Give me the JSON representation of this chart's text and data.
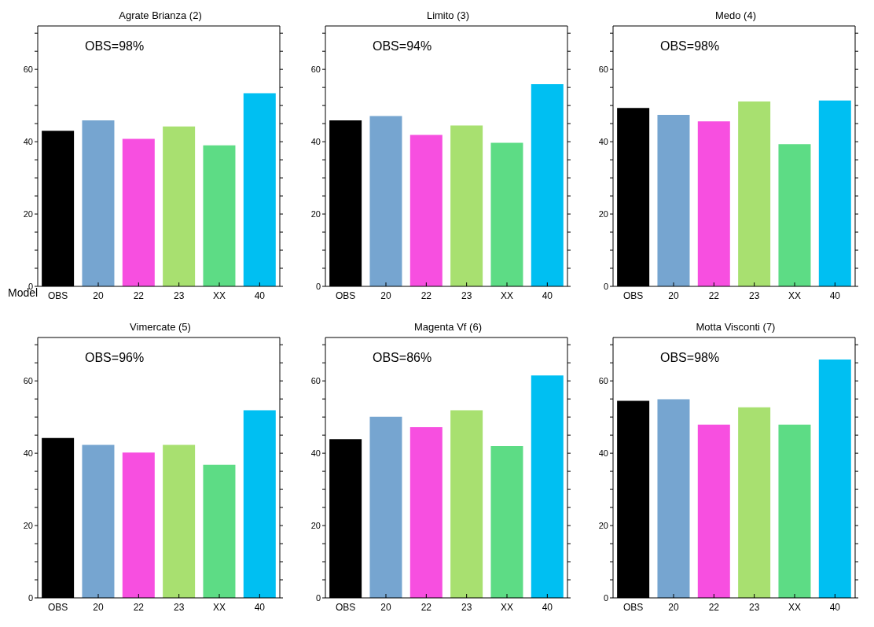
{
  "chart_data": [
    {
      "type": "bar",
      "title": "Agrate Brianza (2)",
      "xlabel": "Model",
      "annotations": [
        "OBS=98%"
      ],
      "categories": [
        "OBS",
        "20",
        "22",
        "23",
        "XX",
        "40"
      ],
      "values": [
        43.0,
        45.9,
        40.8,
        44.2,
        39.0,
        53.4
      ],
      "colors": [
        "#000000",
        "#76a5d0",
        "#f74fe0",
        "#a8e070",
        "#5ddc85",
        "#00bff2"
      ],
      "ylim": [
        0,
        72
      ],
      "yticks": [
        0,
        {
          "value": 5,
          "label": null
        },
        {
          "value": 10,
          "label": null
        },
        {
          "value": 15,
          "label": null
        },
        20,
        {
          "value": 25,
          "label": null
        },
        {
          "value": 30,
          "label": null
        },
        {
          "value": 35,
          "label": null
        },
        40,
        {
          "value": 45,
          "label": null
        },
        {
          "value": 50,
          "label": null
        },
        {
          "value": 55,
          "label": null
        },
        60,
        {
          "value": 65,
          "label": null
        },
        {
          "value": 70,
          "label": null
        }
      ],
      "grid": false,
      "legend": false
    },
    {
      "type": "bar",
      "title": "Limito (3)",
      "annotations": [
        "OBS=94%"
      ],
      "categories": [
        "OBS",
        "20",
        "22",
        "23",
        "XX",
        "40"
      ],
      "values": [
        45.9,
        47.1,
        41.9,
        44.5,
        39.7,
        55.9
      ],
      "colors": [
        "#000000",
        "#76a5d0",
        "#f74fe0",
        "#a8e070",
        "#5ddc85",
        "#00bff2"
      ],
      "ylim": [
        0,
        72
      ],
      "yticks": [
        0,
        {
          "value": 5,
          "label": null
        },
        {
          "value": 10,
          "label": null
        },
        {
          "value": 15,
          "label": null
        },
        20,
        {
          "value": 25,
          "label": null
        },
        {
          "value": 30,
          "label": null
        },
        {
          "value": 35,
          "label": null
        },
        40,
        {
          "value": 45,
          "label": null
        },
        {
          "value": 50,
          "label": null
        },
        {
          "value": 55,
          "label": null
        },
        60,
        {
          "value": 65,
          "label": null
        },
        {
          "value": 70,
          "label": null
        }
      ],
      "grid": false,
      "legend": false
    },
    {
      "type": "bar",
      "title": "Medo (4)",
      "annotations": [
        "OBS=98%"
      ],
      "categories": [
        "OBS",
        "20",
        "22",
        "23",
        "XX",
        "40"
      ],
      "values": [
        49.3,
        47.4,
        45.6,
        51.1,
        39.3,
        51.4
      ],
      "colors": [
        "#000000",
        "#76a5d0",
        "#f74fe0",
        "#a8e070",
        "#5ddc85",
        "#00bff2"
      ],
      "ylim": [
        0,
        72
      ],
      "yticks": [
        0,
        {
          "value": 5,
          "label": null
        },
        {
          "value": 10,
          "label": null
        },
        {
          "value": 15,
          "label": null
        },
        20,
        {
          "value": 25,
          "label": null
        },
        {
          "value": 30,
          "label": null
        },
        {
          "value": 35,
          "label": null
        },
        40,
        {
          "value": 45,
          "label": null
        },
        {
          "value": 50,
          "label": null
        },
        {
          "value": 55,
          "label": null
        },
        60,
        {
          "value": 65,
          "label": null
        },
        {
          "value": 70,
          "label": null
        }
      ],
      "grid": false,
      "legend": false
    },
    {
      "type": "bar",
      "title": "Vimercate (5)",
      "annotations": [
        "OBS=96%"
      ],
      "categories": [
        "OBS",
        "20",
        "22",
        "23",
        "XX",
        "40"
      ],
      "values": [
        44.2,
        42.3,
        40.2,
        42.3,
        36.8,
        51.9
      ],
      "colors": [
        "#000000",
        "#76a5d0",
        "#f74fe0",
        "#a8e070",
        "#5ddc85",
        "#00bff2"
      ],
      "ylim": [
        0,
        72
      ],
      "yticks": [
        0,
        {
          "value": 5,
          "label": null
        },
        {
          "value": 10,
          "label": null
        },
        {
          "value": 15,
          "label": null
        },
        20,
        {
          "value": 25,
          "label": null
        },
        {
          "value": 30,
          "label": null
        },
        {
          "value": 35,
          "label": null
        },
        40,
        {
          "value": 45,
          "label": null
        },
        {
          "value": 50,
          "label": null
        },
        {
          "value": 55,
          "label": null
        },
        60,
        {
          "value": 65,
          "label": null
        },
        {
          "value": 70,
          "label": null
        }
      ],
      "grid": false,
      "legend": false
    },
    {
      "type": "bar",
      "title": "Magenta Vf (6)",
      "annotations": [
        "OBS=86%"
      ],
      "categories": [
        "OBS",
        "20",
        "22",
        "23",
        "XX",
        "40"
      ],
      "values": [
        43.9,
        50.1,
        47.2,
        51.9,
        42.0,
        61.5
      ],
      "colors": [
        "#000000",
        "#76a5d0",
        "#f74fe0",
        "#a8e070",
        "#5ddc85",
        "#00bff2"
      ],
      "ylim": [
        0,
        72
      ],
      "yticks": [
        0,
        {
          "value": 5,
          "label": null
        },
        {
          "value": 10,
          "label": null
        },
        {
          "value": 15,
          "label": null
        },
        20,
        {
          "value": 25,
          "label": null
        },
        {
          "value": 30,
          "label": null
        },
        {
          "value": 35,
          "label": null
        },
        40,
        {
          "value": 45,
          "label": null
        },
        {
          "value": 50,
          "label": null
        },
        {
          "value": 55,
          "label": null
        },
        60,
        {
          "value": 65,
          "label": null
        },
        {
          "value": 70,
          "label": null
        }
      ],
      "grid": false,
      "legend": false
    },
    {
      "type": "bar",
      "title": "Motta Visconti (7)",
      "annotations": [
        "OBS=98%"
      ],
      "categories": [
        "OBS",
        "20",
        "22",
        "23",
        "XX",
        "40"
      ],
      "values": [
        54.5,
        54.9,
        47.9,
        52.7,
        47.9,
        65.9
      ],
      "colors": [
        "#000000",
        "#76a5d0",
        "#f74fe0",
        "#a8e070",
        "#5ddc85",
        "#00bff2"
      ],
      "ylim": [
        0,
        72
      ],
      "yticks": [
        0,
        {
          "value": 5,
          "label": null
        },
        {
          "value": 10,
          "label": null
        },
        {
          "value": 15,
          "label": null
        },
        20,
        {
          "value": 25,
          "label": null
        },
        {
          "value": 30,
          "label": null
        },
        {
          "value": 35,
          "label": null
        },
        40,
        {
          "value": 45,
          "label": null
        },
        {
          "value": 50,
          "label": null
        },
        {
          "value": 55,
          "label": null
        },
        60,
        {
          "value": 65,
          "label": null
        },
        {
          "value": 70,
          "label": null
        }
      ],
      "grid": false,
      "legend": false
    }
  ]
}
